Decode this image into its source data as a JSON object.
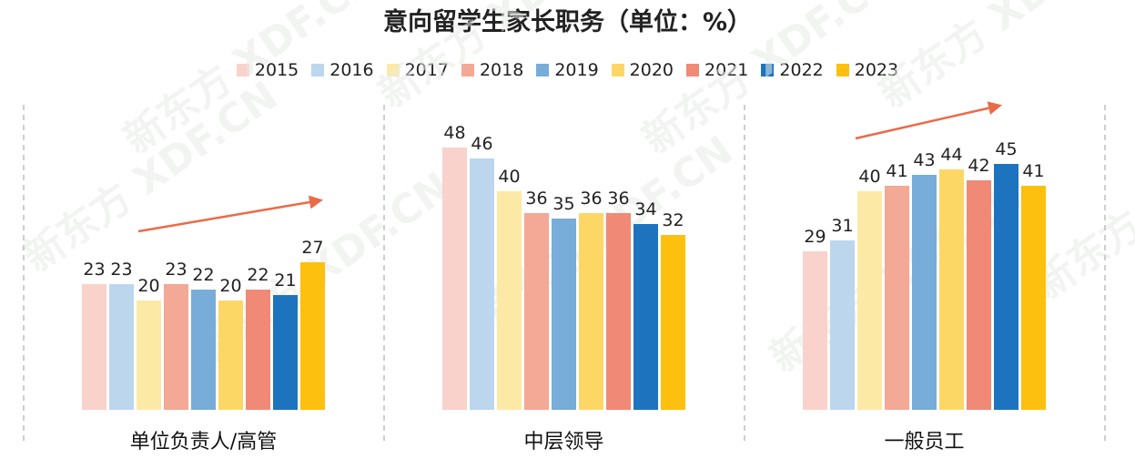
{
  "chart_data": {
    "type": "bar",
    "title": "意向留学生家长职务（单位：%）",
    "categories": [
      "单位负责人/高管",
      "中层领导",
      "一般员工"
    ],
    "series": [
      {
        "name": "2015",
        "color": "#f9d2cb",
        "values": [
          23,
          48,
          29
        ]
      },
      {
        "name": "2016",
        "color": "#bcd6ee",
        "values": [
          23,
          46,
          31
        ]
      },
      {
        "name": "2017",
        "color": "#fde9a6",
        "values": [
          20,
          40,
          40
        ]
      },
      {
        "name": "2018",
        "color": "#f4a896",
        "values": [
          23,
          36,
          41
        ]
      },
      {
        "name": "2019",
        "color": "#78acd9",
        "values": [
          22,
          35,
          43
        ]
      },
      {
        "name": "2020",
        "color": "#fdd766",
        "values": [
          20,
          36,
          44
        ]
      },
      {
        "name": "2021",
        "color": "#f08a76",
        "values": [
          22,
          36,
          42
        ]
      },
      {
        "name": "2022",
        "color": "#1e73be",
        "values": [
          21,
          34,
          45
        ]
      },
      {
        "name": "2023",
        "color": "#fdc00f",
        "values": [
          27,
          32,
          41
        ]
      }
    ],
    "ylim": [
      0,
      55
    ],
    "grid": false,
    "legend_position": "top",
    "trend_arrow_color": "#ec6a47",
    "watermark": "新东方 XDF.CN"
  }
}
